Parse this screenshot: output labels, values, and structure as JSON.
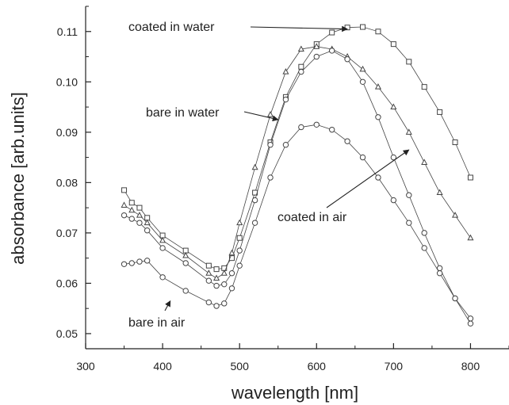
{
  "chart_data": {
    "type": "scatter",
    "title": "",
    "xlabel": "wavelength [nm]",
    "ylabel": "absorbance [arb.units]",
    "xlim": [
      300,
      850
    ],
    "ylim": [
      0.047,
      0.115
    ],
    "xticks": [
      300,
      400,
      500,
      600,
      700,
      800
    ],
    "yticks": [
      0.05,
      0.06,
      0.07,
      0.08,
      0.09,
      0.1,
      0.11
    ],
    "grid": false,
    "legend": "none",
    "colors": {
      "marker": "#444444",
      "axis": "#222222",
      "text": "#222222"
    },
    "series": [
      {
        "marker": "square",
        "x": [
          350,
          360,
          370,
          380,
          400,
          430,
          460,
          470,
          480,
          490,
          500,
          520,
          540,
          560,
          580,
          600,
          620,
          640,
          660,
          680,
          700,
          720,
          740,
          760,
          780,
          800
        ],
        "y": [
          0.0785,
          0.076,
          0.075,
          0.073,
          0.0695,
          0.0665,
          0.0635,
          0.0628,
          0.063,
          0.065,
          0.069,
          0.078,
          0.088,
          0.097,
          0.103,
          0.1075,
          0.1098,
          0.1108,
          0.1109,
          0.11,
          0.1075,
          0.104,
          0.099,
          0.094,
          0.088,
          0.081
        ]
      },
      {
        "marker": "triangle",
        "x": [
          350,
          360,
          370,
          380,
          400,
          430,
          460,
          470,
          480,
          490,
          500,
          520,
          540,
          560,
          580,
          600,
          620,
          640,
          660,
          680,
          700,
          720,
          740,
          760,
          780,
          800
        ],
        "y": [
          0.0755,
          0.0745,
          0.0735,
          0.072,
          0.0685,
          0.0655,
          0.062,
          0.061,
          0.062,
          0.066,
          0.072,
          0.083,
          0.0935,
          0.102,
          0.1065,
          0.107,
          0.1065,
          0.105,
          0.1025,
          0.099,
          0.095,
          0.09,
          0.084,
          0.078,
          0.0735,
          0.069
        ]
      },
      {
        "marker": "circle",
        "x": [
          350,
          360,
          370,
          380,
          400,
          430,
          460,
          470,
          480,
          490,
          500,
          520,
          540,
          560,
          580,
          600,
          620,
          640,
          660,
          680,
          700,
          720,
          740,
          760,
          780,
          800
        ],
        "y": [
          0.0735,
          0.0728,
          0.072,
          0.0705,
          0.067,
          0.064,
          0.0605,
          0.0595,
          0.0598,
          0.062,
          0.0665,
          0.0765,
          0.0875,
          0.0965,
          0.102,
          0.105,
          0.1062,
          0.1045,
          0.1,
          0.093,
          0.085,
          0.0775,
          0.07,
          0.063,
          0.057,
          0.053
        ]
      },
      {
        "marker": "circle",
        "x": [
          350,
          360,
          370,
          380,
          400,
          430,
          460,
          470,
          480,
          490,
          500,
          520,
          540,
          560,
          580,
          600,
          620,
          640,
          660,
          680,
          700,
          720,
          740,
          760,
          780,
          800
        ],
        "y": [
          0.0638,
          0.064,
          0.0643,
          0.0645,
          0.0612,
          0.0585,
          0.0562,
          0.0555,
          0.056,
          0.059,
          0.0635,
          0.072,
          0.081,
          0.0875,
          0.091,
          0.0915,
          0.0905,
          0.0882,
          0.085,
          0.081,
          0.0765,
          0.072,
          0.067,
          0.062,
          0.057,
          0.052
        ]
      }
    ],
    "annotations": [
      {
        "text": "coated in water",
        "arrow_to": [
          640,
          0.1105
        ]
      },
      {
        "text": "bare in water",
        "arrow_to": [
          550,
          0.0925
        ]
      },
      {
        "text": "coated in air",
        "arrow_to": [
          720,
          0.0865
        ]
      },
      {
        "text": "bare in air",
        "arrow_to": [
          410,
          0.0565
        ]
      }
    ]
  }
}
